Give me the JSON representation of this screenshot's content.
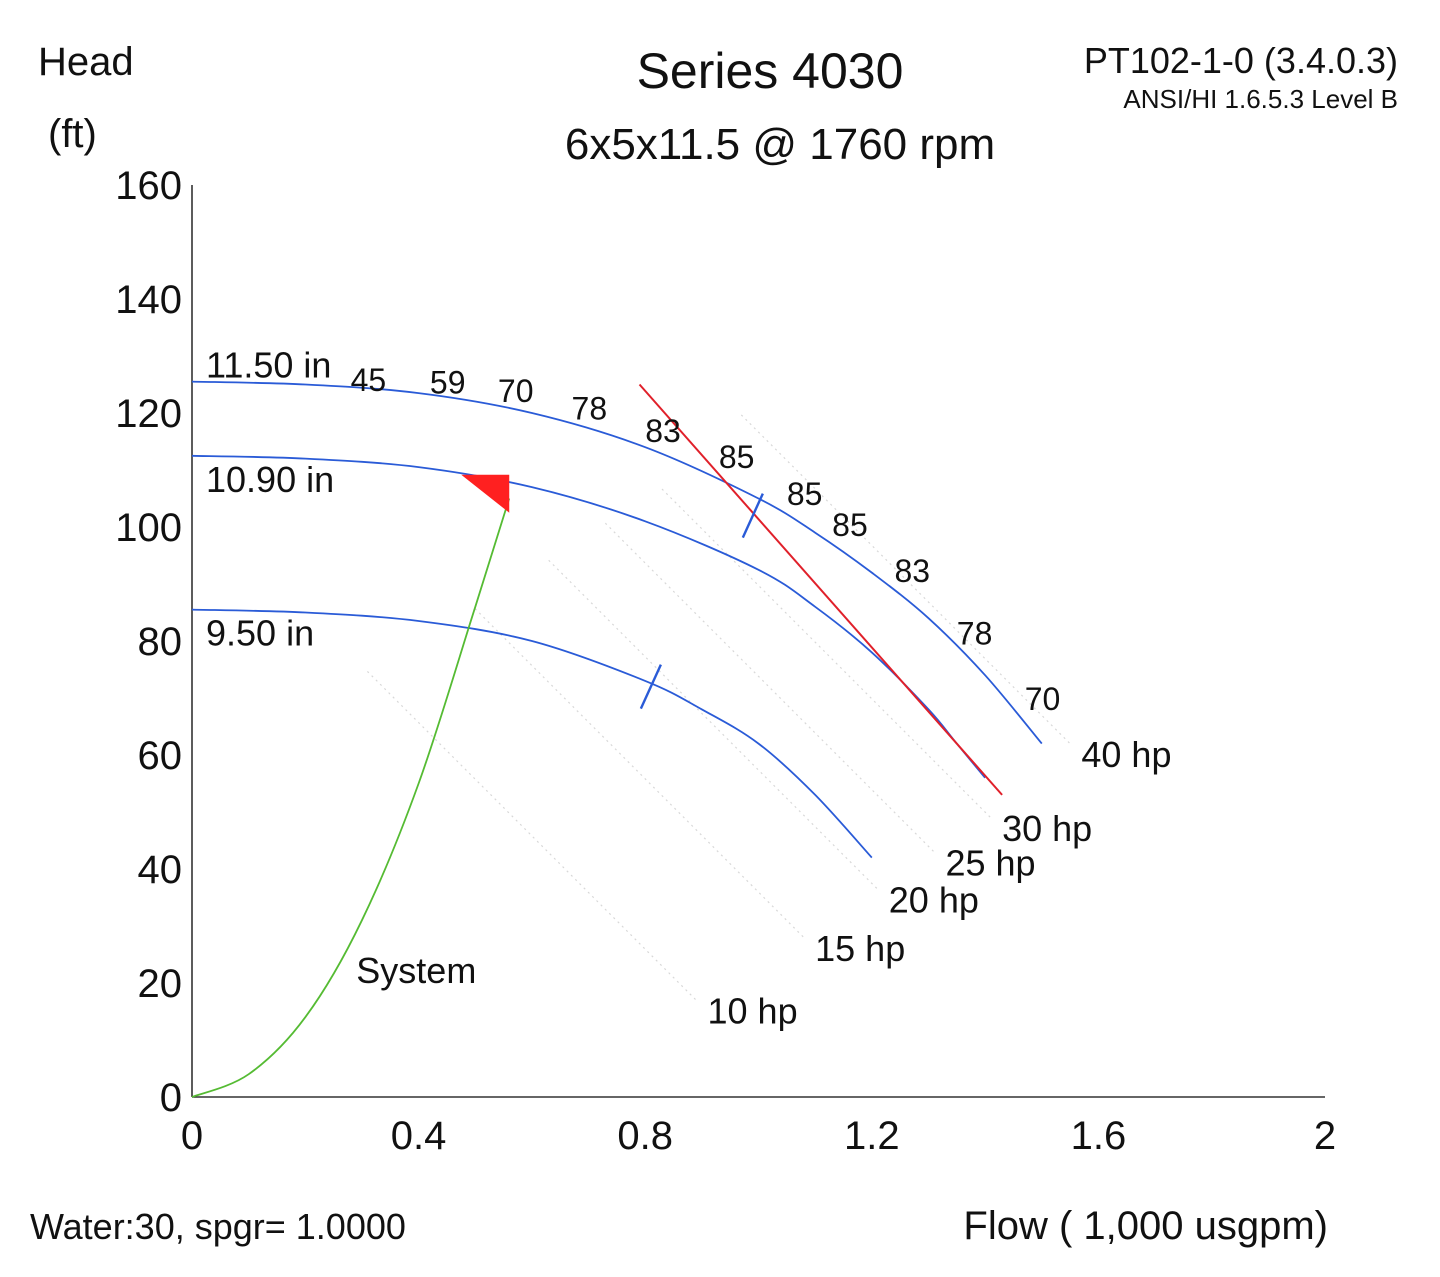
{
  "header": {
    "title": "Series 4030",
    "subtitle": "6x5x11.5 @ 1760 rpm",
    "ylabel_line1": "Head",
    "ylabel_line2": "(ft)",
    "code": "PT102-1-0 (3.4.0.3)",
    "standard": "ANSI/HI 1.6.5.3 Level B"
  },
  "footer": {
    "fluid": "Water:30, spgr= 1.0000",
    "xlabel": "Flow ( 1,000 usgpm)"
  },
  "colors": {
    "impeller": "#2a5bd7",
    "system": "#55bb33",
    "limit": "#e0202a",
    "operating_point": "#ff2020",
    "power_lines": "#d8d8d8",
    "axis": "#333333"
  },
  "chart_data": {
    "type": "line",
    "title": "Series 4030",
    "subtitle": "6x5x11.5 @ 1760 rpm",
    "xlabel": "Flow ( 1,000 usgpm)",
    "ylabel": "Head (ft)",
    "xlim": [
      0,
      2
    ],
    "ylim": [
      0,
      160
    ],
    "x_ticks": [
      "0",
      "0.4",
      "0.8",
      "1.2",
      "1.6",
      "2"
    ],
    "y_ticks": [
      "0",
      "20",
      "40",
      "60",
      "80",
      "100",
      "120",
      "140",
      "160"
    ],
    "grid": false,
    "series": [
      {
        "name": "11.50 in",
        "role": "impeller",
        "x": [
          0,
          0.2,
          0.4,
          0.6,
          0.8,
          1.0,
          1.1,
          1.2,
          1.3,
          1.4,
          1.5
        ],
        "y": [
          125.5,
          125,
          123.5,
          120,
          114,
          105,
          99,
          92,
          84,
          74,
          62
        ]
      },
      {
        "name": "10.90 in",
        "role": "impeller",
        "x": [
          0,
          0.2,
          0.4,
          0.6,
          0.8,
          1.0,
          1.1,
          1.2,
          1.3,
          1.35,
          1.4
        ],
        "y": [
          112.5,
          112,
          110.5,
          107,
          101,
          92.5,
          86,
          78,
          68,
          62,
          56
        ]
      },
      {
        "name": "9.50 in",
        "role": "impeller",
        "x": [
          0,
          0.2,
          0.4,
          0.6,
          0.8,
          0.9,
          1.0,
          1.1,
          1.2
        ],
        "y": [
          85.5,
          85,
          83.5,
          80,
          73,
          68,
          62,
          53,
          42
        ]
      },
      {
        "name": "System",
        "role": "system",
        "x": [
          0,
          0.1,
          0.2,
          0.3,
          0.4,
          0.5,
          0.56
        ],
        "y": [
          0,
          4,
          14,
          31,
          55,
          86,
          105
        ]
      }
    ],
    "efficiency_labels": [
      {
        "text": "45",
        "x": 0.28,
        "y": 126
      },
      {
        "text": "59",
        "x": 0.42,
        "y": 125.5
      },
      {
        "text": "70",
        "x": 0.54,
        "y": 124
      },
      {
        "text": "78",
        "x": 0.67,
        "y": 121
      },
      {
        "text": "83",
        "x": 0.8,
        "y": 117
      },
      {
        "text": "85",
        "x": 0.93,
        "y": 112.5
      },
      {
        "text": "85",
        "x": 1.05,
        "y": 106
      },
      {
        "text": "85",
        "x": 1.13,
        "y": 100.5
      },
      {
        "text": "83",
        "x": 1.24,
        "y": 92.5
      },
      {
        "text": "78",
        "x": 1.35,
        "y": 81.5
      },
      {
        "text": "70",
        "x": 1.47,
        "y": 70
      }
    ],
    "power_labels": [
      {
        "text": "40 hp",
        "x": 1.57,
        "y": 60
      },
      {
        "text": "30 hp",
        "x": 1.43,
        "y": 47
      },
      {
        "text": "25 hp",
        "x": 1.33,
        "y": 41
      },
      {
        "text": "20 hp",
        "x": 1.23,
        "y": 34.5
      },
      {
        "text": "15 hp",
        "x": 1.1,
        "y": 26
      },
      {
        "text": "10 hp",
        "x": 0.91,
        "y": 15
      }
    ],
    "limit_line": {
      "x": [
        0.79,
        1.43
      ],
      "y": [
        125,
        53
      ]
    },
    "npsh_ticks": [
      {
        "x": 0.99,
        "y": 102
      },
      {
        "x": 0.81,
        "y": 72
      }
    ],
    "operating_point": {
      "x": 0.56,
      "y": 109
    }
  }
}
